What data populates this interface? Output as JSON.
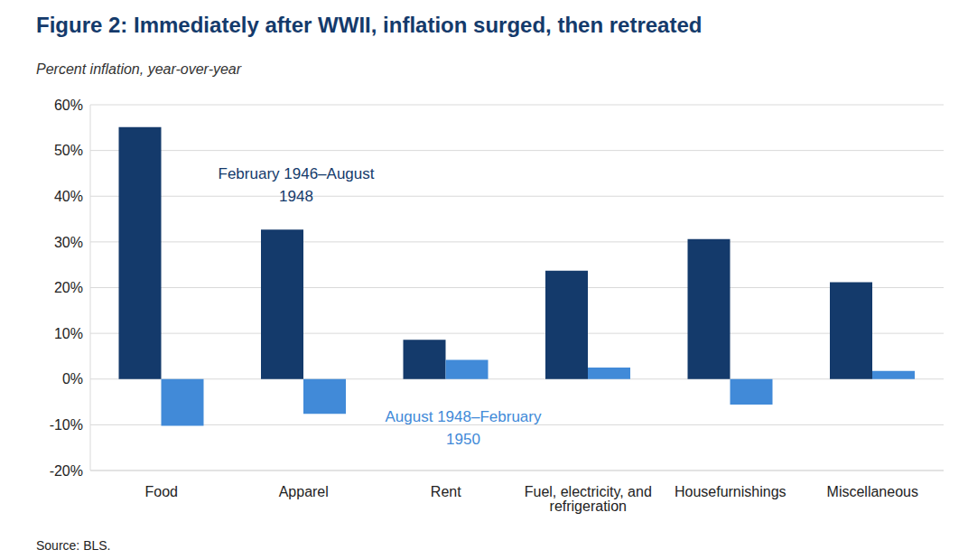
{
  "chart_data": {
    "type": "bar",
    "title": "Figure 2: Immediately after WWII, inflation surged, then retreated",
    "subtitle": "Percent inflation, year-over-year",
    "source": "Source: BLS.",
    "categories": [
      "Food",
      "Apparel",
      "Rent",
      "Fuel, electricity, and refrigeration",
      "Housefurnishings",
      "Miscellaneous"
    ],
    "series": [
      {
        "name": "February 1946–August 1948",
        "color": "#143a6b",
        "values": [
          55.1,
          32.7,
          8.6,
          23.7,
          30.6,
          21.2
        ]
      },
      {
        "name": "August 1948–February 1950",
        "color": "#418ad8",
        "values": [
          -10.2,
          -7.6,
          4.2,
          2.5,
          -5.6,
          1.8
        ]
      }
    ],
    "ylim": [
      -20,
      60
    ],
    "yticks": [
      {
        "value": -20,
        "label": "-20%"
      },
      {
        "value": -10,
        "label": "-10%"
      },
      {
        "value": 0,
        "label": "0%"
      },
      {
        "value": 10,
        "label": "10%"
      },
      {
        "value": 20,
        "label": "20%"
      },
      {
        "value": 30,
        "label": "30%"
      },
      {
        "value": 40,
        "label": "40%"
      },
      {
        "value": 50,
        "label": "50%"
      },
      {
        "value": 60,
        "label": "60%"
      }
    ],
    "grid": true
  }
}
